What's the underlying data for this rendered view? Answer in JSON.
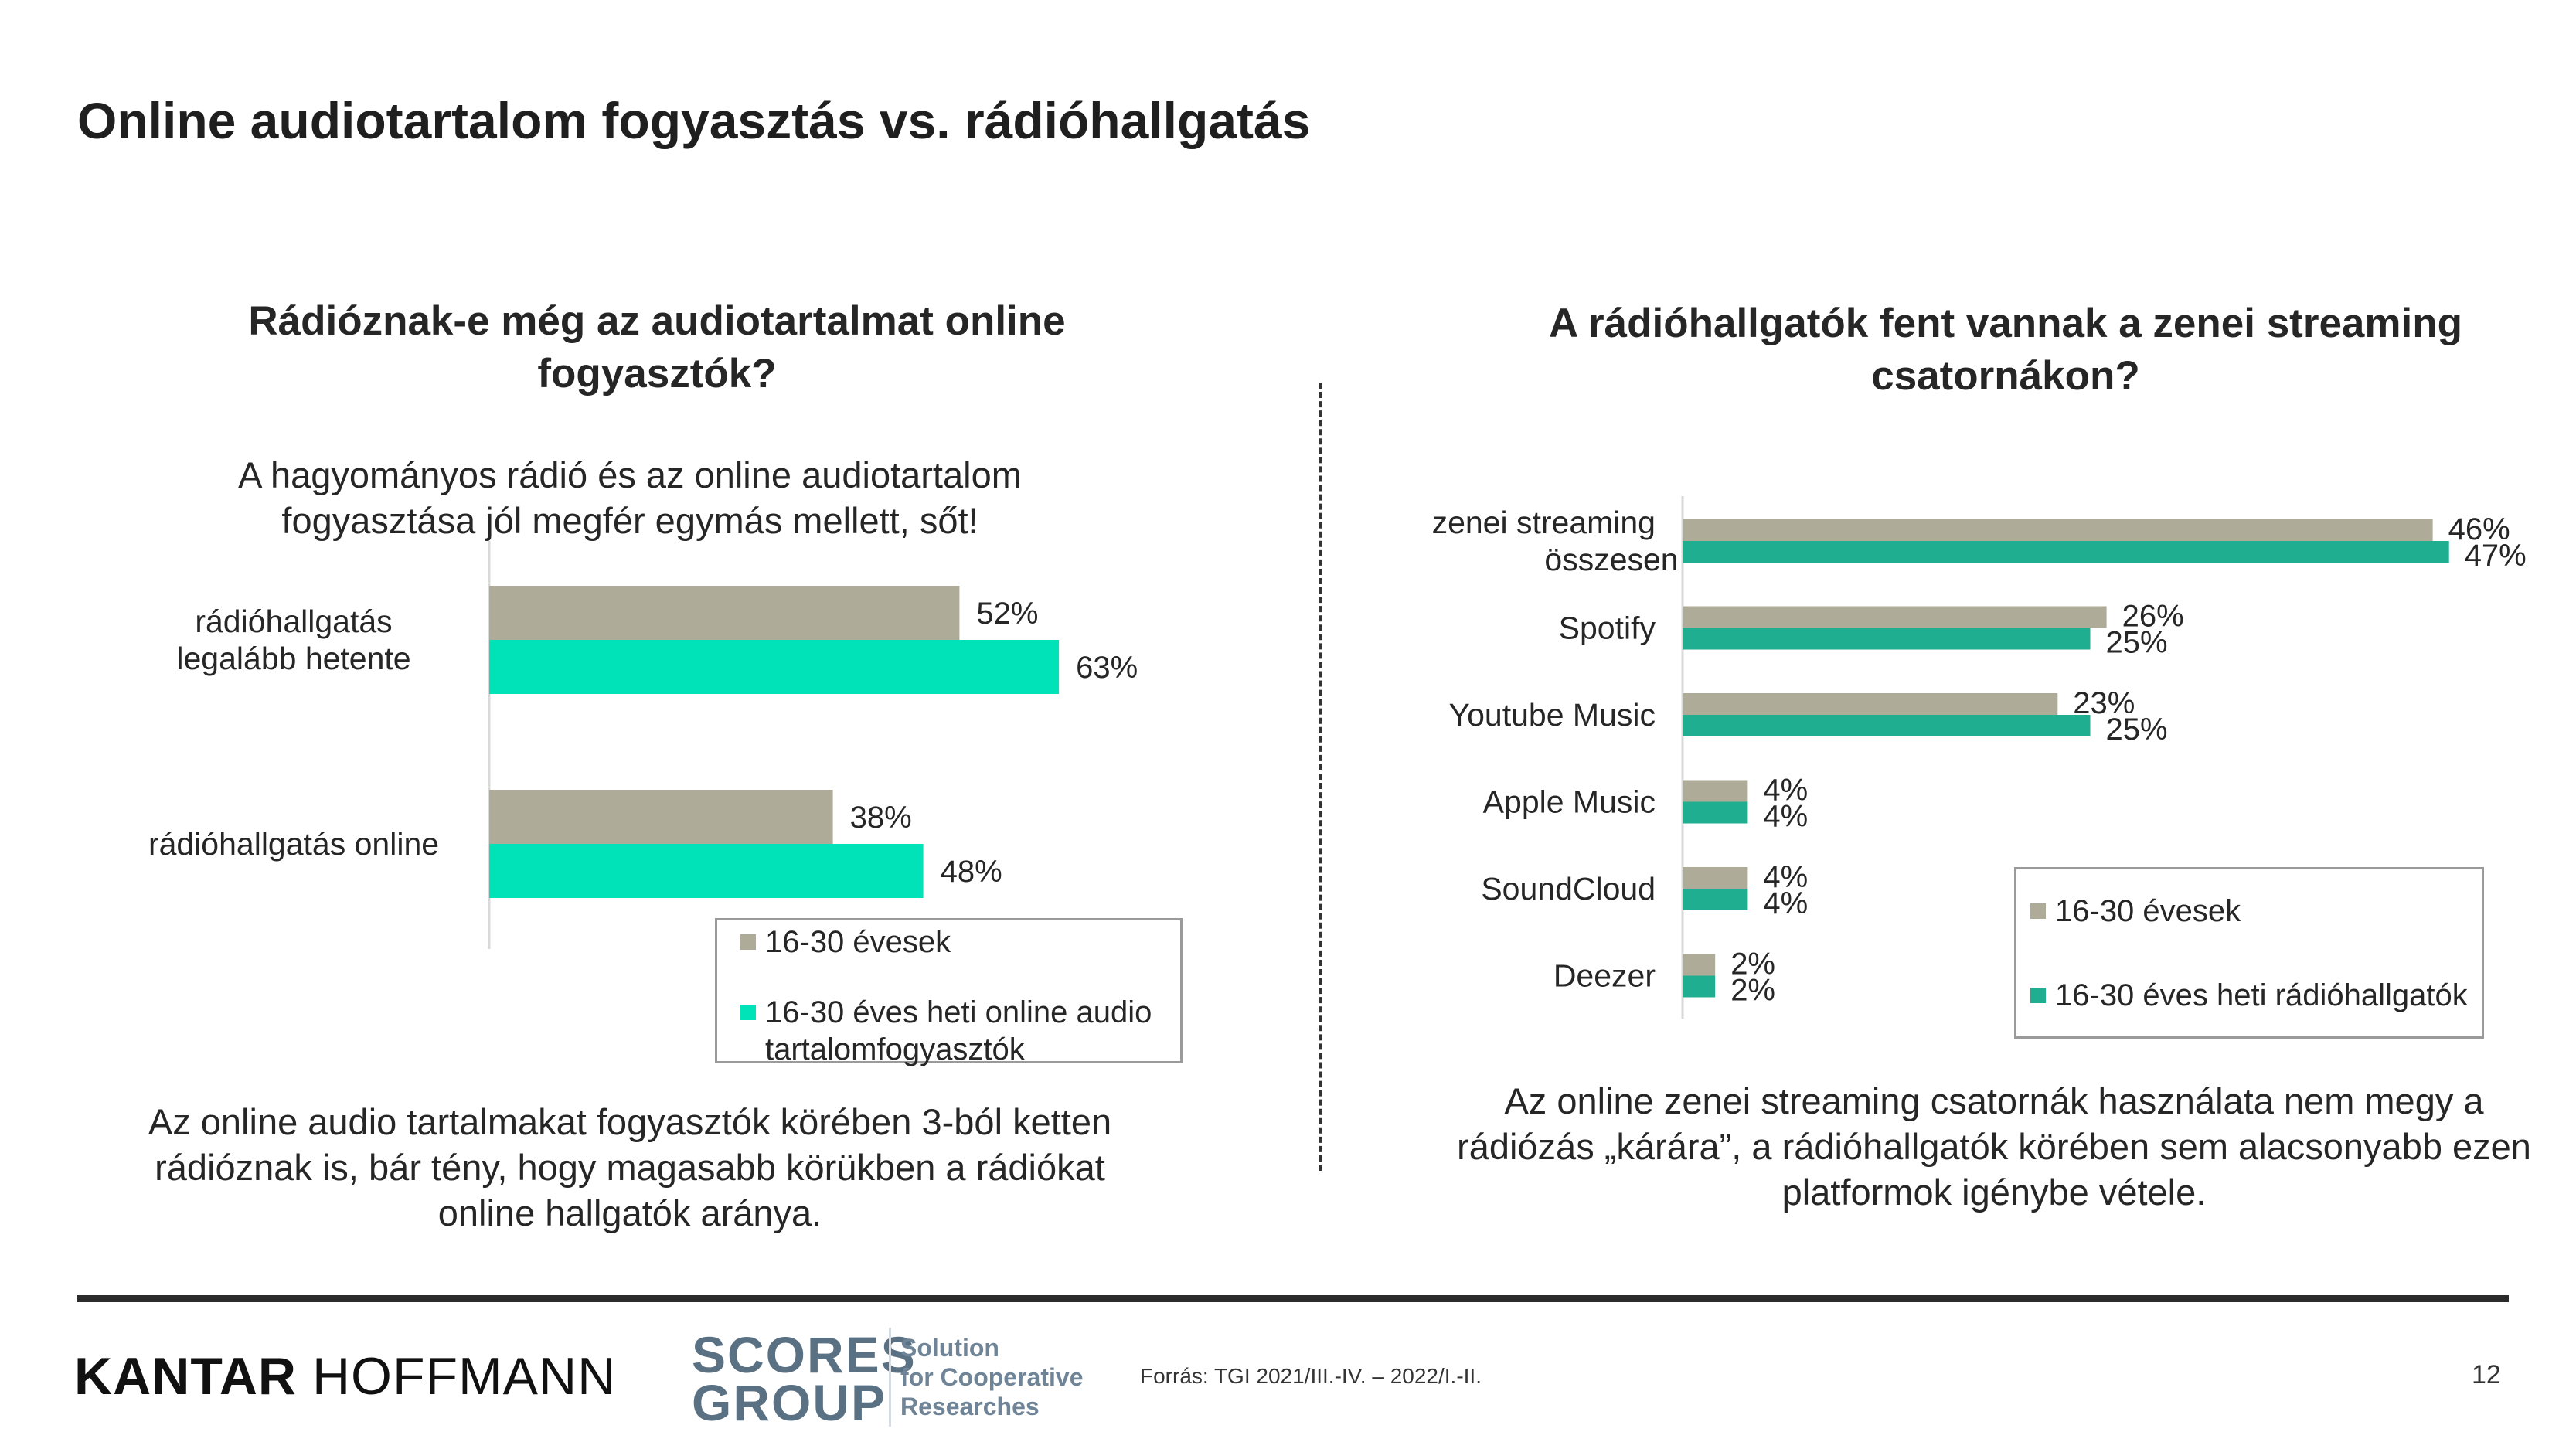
{
  "page": {
    "title": "Online audiotartalom fogyasztás vs. rádióhallgatás",
    "left_heading": "Rádióznak-e még az audiotartalmat online fogyasztók?",
    "left_intro": "A hagyományos rádió és az online audiotartalom fogyasztása jól megfér egymás mellett, sőt!",
    "left_footnote": "Az online audio tartalmakat fogyasztók körében 3-ból ketten rádióznak is, bár tény, hogy magasabb körükben a rádiókat online hallgatók aránya.",
    "right_heading": "A rádióhallgatók fent vannak a zenei streaming csatornákon?",
    "right_footnote": "Az online zenei streaming csatornák használata nem  megy a rádiózás „kárára”, a rádióhallgatók körében sem alacsonyabb ezen platformok igénybe vétele.",
    "source": "Forrás: TGI 2021/III.-IV. – 2022/I.-II.",
    "page_number": "12"
  },
  "logos": {
    "kantar_bold": "KANTAR",
    "kantar_light": "HOFFMANN",
    "scores_line1": "SCORES",
    "scores_line2": "GROUP",
    "scores_tagline": [
      "Solution",
      "for Cooperative",
      "Researches"
    ]
  },
  "chart_data": [
    {
      "type": "bar",
      "orientation": "horizontal",
      "categories": [
        "rádióhallgatás legalább hetente",
        "rádióhallgatás online"
      ],
      "series": [
        {
          "name": "16-30 évesek",
          "values": [
            52,
            38
          ],
          "color": "#aeab99"
        },
        {
          "name": "16-30 éves heti online audio tartalomfogyasztók",
          "values": [
            63,
            48
          ],
          "color": "#00e3b8"
        }
      ],
      "value_format": "percent",
      "xlim": [
        0,
        100
      ],
      "legend": "bottom-right"
    },
    {
      "type": "bar",
      "orientation": "horizontal",
      "categories": [
        "zenei streaming összesen",
        "Spotify",
        "Youtube Music",
        "Apple Music",
        "SoundCloud",
        "Deezer"
      ],
      "series": [
        {
          "name": "16-30 évesek",
          "values": [
            46,
            26,
            23,
            4,
            4,
            2
          ],
          "color": "#aeab99"
        },
        {
          "name": "16-30 éves heti rádióhallgatók",
          "values": [
            47,
            25,
            25,
            4,
            4,
            2
          ],
          "color": "#1fae8f"
        }
      ],
      "value_format": "percent",
      "xlim": [
        0,
        50
      ],
      "legend": "bottom-right"
    }
  ]
}
